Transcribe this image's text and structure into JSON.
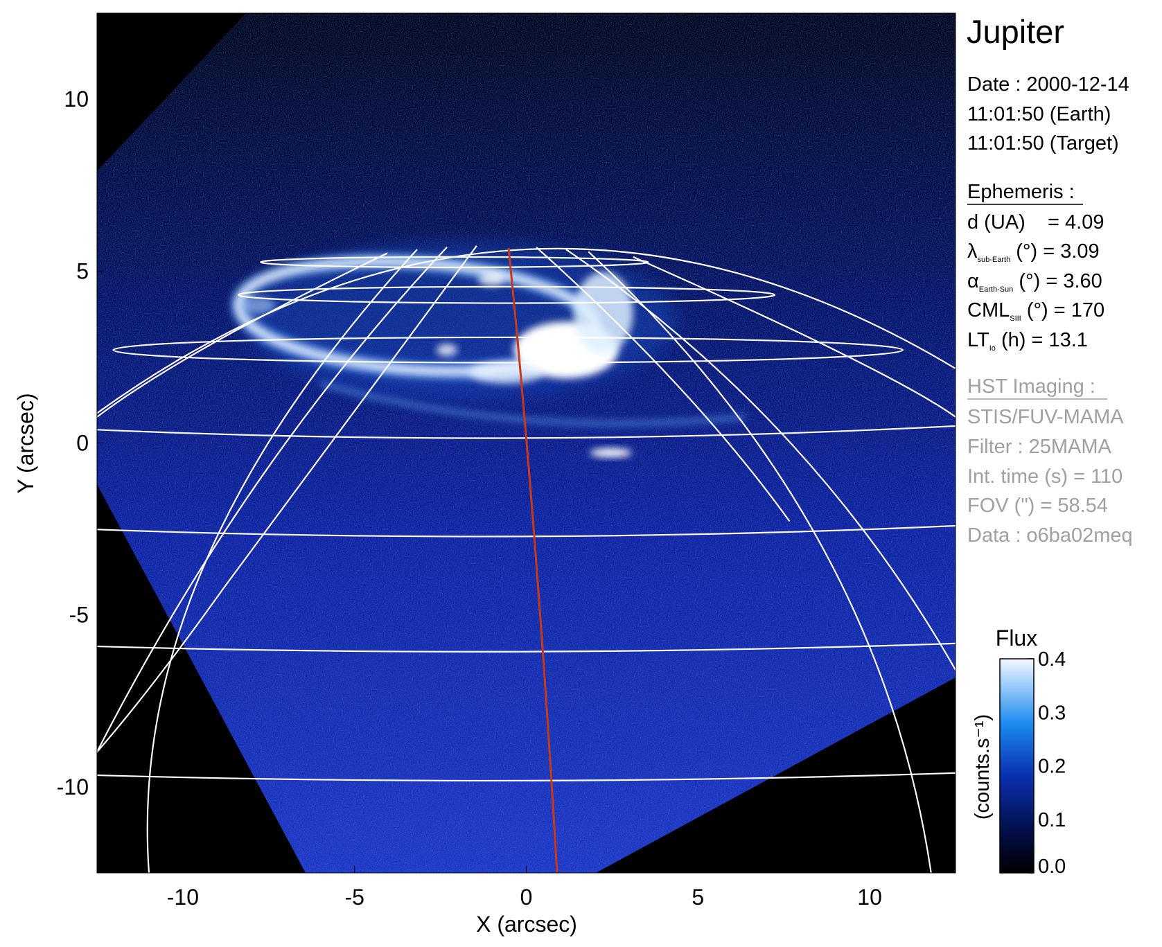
{
  "chart_data": {
    "type": "image",
    "xlabel": "X (arcsec)",
    "ylabel": "Y (arcsec)",
    "xlim": [
      -12.5,
      12.5
    ],
    "ylim": [
      -12.5,
      12.5
    ],
    "xticks": [
      -10,
      -5,
      0,
      5,
      10
    ],
    "yticks": [
      -10,
      -5,
      0,
      5,
      10
    ],
    "colorbar": {
      "title": "Flux",
      "label": "(counts.s⁻¹)",
      "lim": [
        0,
        0.4
      ],
      "ticks": [
        {
          "value": 0,
          "label": "0.0"
        },
        0.1,
        0.2,
        0.3,
        {
          "value": 0.4,
          "label": "0.4"
        }
      ]
    }
  },
  "info": {
    "target": "Jupiter",
    "date": "Date : 2000-12-14",
    "time_earth": "11:01:50 (Earth)",
    "time_target": "11:01:50 (Target)",
    "ephemeris": {
      "title": "Ephemeris :",
      "rows": [
        {
          "main": "d (UA)    = 4.09"
        },
        {
          "main": "λ",
          "sub": "sub-Earth",
          "rest": " (°) = 3.09"
        },
        {
          "main": "α",
          "sub": "Earth-Sun",
          "rest": " (°) = 3.60"
        },
        {
          "main": "CML",
          "sub": "SIII",
          "rest": " (°) = 170"
        },
        {
          "main": "LT",
          "sub": "Io",
          "rest": " (h) = 13.1"
        }
      ]
    },
    "imaging": {
      "title": "HST Imaging :",
      "rows": [
        "STIS/FUV-MAMA",
        "Filter : 25MAMA",
        "Int. time (s) = 110",
        "FOV (\") = 58.54",
        "Data : o6ba02meq"
      ]
    }
  }
}
